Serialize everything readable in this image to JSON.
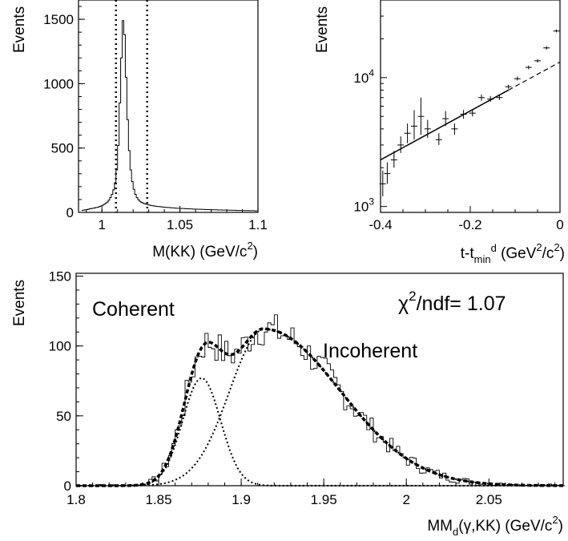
{
  "chart_data": [
    {
      "type": "histogram",
      "panel": "top-left",
      "xlabel": "M(KK) (GeV/c",
      "xlabel_sup": "2",
      "xlabel_tail": ")",
      "ylabel": "Events",
      "xlim": [
        0.985,
        1.1
      ],
      "ylim": [
        0,
        1650
      ],
      "xticks": [
        {
          "v": 1.0,
          "label": "1"
        },
        {
          "v": 1.05,
          "label": "1.05"
        },
        {
          "v": 1.1,
          "label": "1.1"
        }
      ],
      "yticks": [
        {
          "v": 0,
          "label": "0"
        },
        {
          "v": 500,
          "label": "500"
        },
        {
          "v": 1000,
          "label": "1000"
        },
        {
          "v": 1500,
          "label": "1500"
        }
      ],
      "cut_lines": [
        1.009,
        1.029
      ],
      "bin_width": 0.001,
      "x_start": 0.987,
      "values": [
        15,
        18,
        20,
        22,
        25,
        28,
        30,
        33,
        35,
        38,
        40,
        45,
        50,
        55,
        62,
        70,
        80,
        95,
        115,
        140,
        175,
        230,
        330,
        520,
        850,
        1200,
        1490,
        1380,
        1050,
        720,
        480,
        330,
        240,
        180,
        140,
        115,
        98,
        86,
        78,
        72,
        68,
        64,
        60,
        57,
        54,
        52,
        50,
        48,
        46,
        45,
        44,
        42,
        41,
        40,
        39,
        38,
        37,
        36,
        35,
        34,
        33,
        32,
        32,
        31,
        30,
        30,
        29,
        28,
        28,
        27,
        27,
        26,
        26,
        25,
        25,
        24,
        24,
        23,
        23,
        22,
        22,
        22,
        21,
        21,
        20,
        20,
        20,
        19,
        19,
        19,
        18,
        18,
        18,
        17,
        17,
        17,
        16,
        16,
        16,
        15,
        15,
        15,
        15,
        14,
        14,
        14,
        14,
        13,
        13,
        13,
        13,
        12,
        12
      ]
    },
    {
      "type": "scatter",
      "panel": "top-right",
      "yscale": "log",
      "xlabel": "t-t",
      "xlabel_sub": "min",
      "xlabel_sup": "d",
      "xlabel_tail": " (GeV",
      "xlabel_sup2": "2",
      "xlabel_tail2": "/c",
      "xlabel_sup3": "2",
      "xlabel_tail3": ")",
      "ylabel": "Events",
      "xlim": [
        -0.4,
        0
      ],
      "ylim": [
        900,
        40000
      ],
      "xticks": [
        {
          "v": -0.4,
          "label": "-0.4"
        },
        {
          "v": -0.2,
          "label": "-0.2"
        },
        {
          "v": 0,
          "label": "0"
        }
      ],
      "yticks": [
        {
          "v": 1000,
          "base": "10",
          "exp": "3"
        },
        {
          "v": 10000,
          "base": "10",
          "exp": "4"
        }
      ],
      "points": [
        {
          "x": -0.395,
          "y": 1500,
          "lo": 1200,
          "hi": 1900
        },
        {
          "x": -0.385,
          "y": 1800,
          "lo": 1500,
          "hi": 2200
        },
        {
          "x": -0.37,
          "y": 2300,
          "lo": 2000,
          "hi": 2700
        },
        {
          "x": -0.355,
          "y": 3000,
          "lo": 2600,
          "hi": 3500
        },
        {
          "x": -0.34,
          "y": 3700,
          "lo": 3100,
          "hi": 4400
        },
        {
          "x": -0.325,
          "y": 4200,
          "lo": 3300,
          "hi": 5600
        },
        {
          "x": -0.31,
          "y": 5000,
          "lo": 3600,
          "hi": 7000
        },
        {
          "x": -0.295,
          "y": 4000,
          "lo": 3400,
          "hi": 4700
        },
        {
          "x": -0.27,
          "y": 3300,
          "lo": 3000,
          "hi": 3700
        },
        {
          "x": -0.255,
          "y": 4800,
          "lo": 4200,
          "hi": 5500
        },
        {
          "x": -0.235,
          "y": 4000,
          "lo": 3600,
          "hi": 4400
        },
        {
          "x": -0.215,
          "y": 5200,
          "lo": 4800,
          "hi": 5600
        },
        {
          "x": -0.195,
          "y": 5300,
          "lo": 5000,
          "hi": 5700
        },
        {
          "x": -0.175,
          "y": 7000,
          "lo": 6600,
          "hi": 7400
        },
        {
          "x": -0.155,
          "y": 6800,
          "lo": 6500,
          "hi": 7200
        },
        {
          "x": -0.135,
          "y": 7000,
          "lo": 6700,
          "hi": 7300
        },
        {
          "x": -0.115,
          "y": 8500,
          "lo": 8200,
          "hi": 8800
        },
        {
          "x": -0.095,
          "y": 9800,
          "lo": 9500,
          "hi": 10200
        },
        {
          "x": -0.07,
          "y": 12000,
          "lo": 11600,
          "hi": 12400
        },
        {
          "x": -0.05,
          "y": 13500,
          "lo": 13100,
          "hi": 13900
        },
        {
          "x": -0.03,
          "y": 17000,
          "lo": 16500,
          "hi": 17500
        },
        {
          "x": -0.008,
          "y": 23000,
          "lo": 22400,
          "hi": 23600
        }
      ],
      "fit_solid": [
        {
          "x": -0.4,
          "y": 2300
        },
        {
          "x": -0.115,
          "y": 8000
        }
      ],
      "fit_dashed": [
        {
          "x": -0.115,
          "y": 8000
        },
        {
          "x": 0,
          "y": 13200
        }
      ]
    },
    {
      "type": "histogram",
      "panel": "bottom",
      "xlabel": "MM",
      "xlabel_sub": "d",
      "xlabel_tail": "(γ,KK) (GeV/c",
      "xlabel_sup": "2",
      "xlabel_tail2": ")",
      "ylabel": "Events",
      "xlim": [
        1.8,
        2.095
      ],
      "ylim": [
        0,
        152
      ],
      "xticks": [
        {
          "v": 1.8,
          "label": "1.8"
        },
        {
          "v": 1.85,
          "label": "1.85"
        },
        {
          "v": 1.9,
          "label": "1.9"
        },
        {
          "v": 1.95,
          "label": "1.95"
        },
        {
          "v": 2.0,
          "label": "2"
        },
        {
          "v": 2.05,
          "label": "2.05"
        }
      ],
      "yticks": [
        {
          "v": 0,
          "label": "0"
        },
        {
          "v": 50,
          "label": "50"
        },
        {
          "v": 100,
          "label": "100"
        },
        {
          "v": 150,
          "label": "150"
        }
      ],
      "annotations": {
        "coherent": "Coherent",
        "incoherent": "Incoherent",
        "chi_base": "χ",
        "chi_sup": "2",
        "chi_tail": "/ndf= 1.07"
      },
      "components": {
        "coherent": {
          "mean": 1.876,
          "sigma": 0.0115,
          "amp": 77
        },
        "incoherent": {
          "mean": 1.914,
          "sigma_left": 0.021,
          "sigma_right": 0.046,
          "amp": 112
        }
      },
      "bin_width": 0.002,
      "x_start": 1.8
    }
  ]
}
